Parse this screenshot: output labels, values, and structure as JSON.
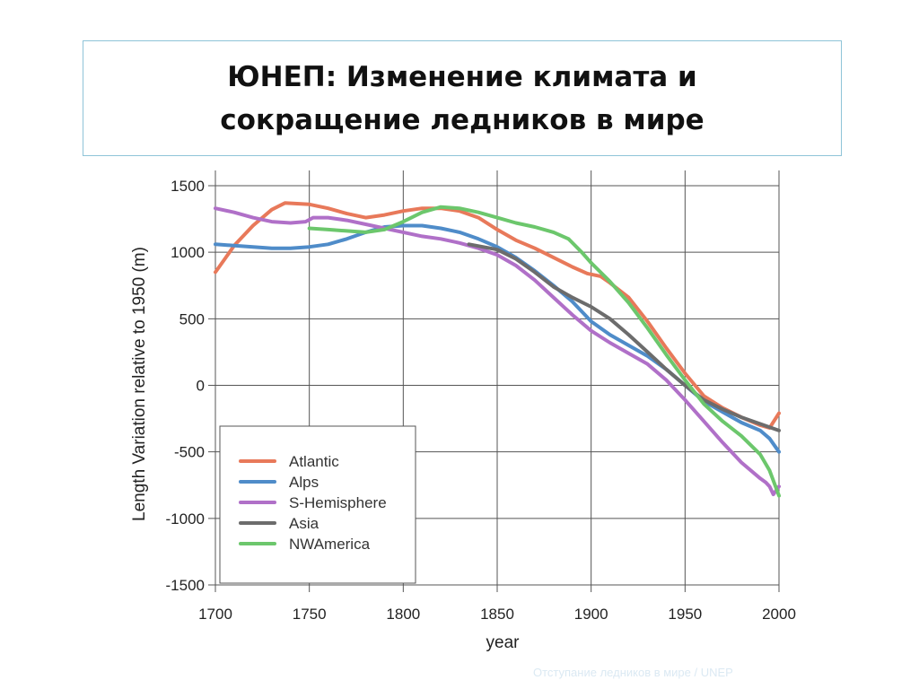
{
  "slide": {
    "title_line1": "ЮНЕП: Изменение климата и",
    "title_line2": "сокращение ледников в мире",
    "footer": "Отступание ледников в мире  / UNEP"
  },
  "chart_data": {
    "type": "line",
    "xlabel": "year",
    "ylabel": "Length Variation relative to 1950 (m)",
    "xlim": [
      1700,
      2000
    ],
    "ylim": [
      -1500,
      1500
    ],
    "xticks": [
      1700,
      1750,
      1800,
      1850,
      1900,
      1950,
      2000
    ],
    "yticks": [
      1500,
      1000,
      500,
      0,
      -500,
      -1000,
      -1500
    ],
    "grid": true,
    "legend_position": "bottom-left",
    "series": [
      {
        "name": "Atlantic",
        "color": "#e8795a",
        "x": [
          1700,
          1705,
          1710,
          1720,
          1730,
          1737,
          1750,
          1760,
          1770,
          1780,
          1790,
          1800,
          1810,
          1820,
          1830,
          1840,
          1850,
          1860,
          1870,
          1880,
          1890,
          1898,
          1905,
          1910,
          1920,
          1930,
          1940,
          1950,
          1960,
          1970,
          1980,
          1990,
          1995,
          2000
        ],
        "y": [
          850,
          950,
          1050,
          1200,
          1320,
          1370,
          1360,
          1330,
          1290,
          1260,
          1280,
          1310,
          1330,
          1330,
          1310,
          1260,
          1170,
          1090,
          1030,
          960,
          890,
          840,
          820,
          770,
          660,
          480,
          280,
          90,
          -80,
          -170,
          -240,
          -300,
          -320,
          -210
        ]
      },
      {
        "name": "Alps",
        "color": "#4f8cc9",
        "x": [
          1700,
          1710,
          1720,
          1730,
          1740,
          1750,
          1760,
          1770,
          1780,
          1790,
          1800,
          1810,
          1820,
          1830,
          1840,
          1850,
          1860,
          1870,
          1880,
          1890,
          1900,
          1910,
          1920,
          1930,
          1940,
          1950,
          1960,
          1970,
          1980,
          1990,
          1995,
          2000
        ],
        "y": [
          1060,
          1050,
          1040,
          1030,
          1030,
          1040,
          1060,
          1100,
          1150,
          1190,
          1200,
          1200,
          1180,
          1150,
          1100,
          1040,
          960,
          860,
          750,
          630,
          480,
          380,
          300,
          220,
          120,
          0,
          -120,
          -200,
          -280,
          -340,
          -400,
          -500
        ]
      },
      {
        "name": "S-Hemisphere",
        "color": "#b070c8",
        "x": [
          1700,
          1710,
          1720,
          1730,
          1740,
          1748,
          1752,
          1760,
          1770,
          1780,
          1790,
          1800,
          1810,
          1820,
          1830,
          1840,
          1850,
          1860,
          1870,
          1880,
          1890,
          1900,
          1910,
          1920,
          1930,
          1940,
          1950,
          1960,
          1970,
          1980,
          1990,
          1993,
          1995,
          1997,
          2000
        ],
        "y": [
          1330,
          1300,
          1260,
          1230,
          1220,
          1230,
          1260,
          1260,
          1240,
          1210,
          1180,
          1150,
          1120,
          1100,
          1070,
          1030,
          980,
          900,
          790,
          660,
          530,
          410,
          320,
          240,
          160,
          40,
          -110,
          -270,
          -430,
          -580,
          -700,
          -730,
          -760,
          -820,
          -760
        ]
      },
      {
        "name": "Asia",
        "color": "#6c6c6c",
        "x": [
          1835,
          1850,
          1860,
          1870,
          1880,
          1890,
          1900,
          1910,
          1920,
          1930,
          1940,
          1950,
          1960,
          1970,
          1980,
          1990,
          2000
        ],
        "y": [
          1060,
          1020,
          950,
          850,
          740,
          660,
          590,
          500,
          380,
          250,
          120,
          0,
          -110,
          -180,
          -240,
          -290,
          -340
        ]
      },
      {
        "name": "NWAmerica",
        "color": "#6cc76c",
        "x": [
          1750,
          1760,
          1770,
          1780,
          1790,
          1800,
          1810,
          1820,
          1830,
          1840,
          1850,
          1860,
          1870,
          1880,
          1888,
          1895,
          1900,
          1910,
          1920,
          1930,
          1940,
          1950,
          1960,
          1970,
          1980,
          1990,
          1995,
          2000
        ],
        "y": [
          1180,
          1170,
          1160,
          1150,
          1170,
          1230,
          1300,
          1340,
          1330,
          1300,
          1260,
          1220,
          1190,
          1150,
          1100,
          1000,
          920,
          780,
          620,
          430,
          230,
          40,
          -140,
          -270,
          -380,
          -520,
          -640,
          -830
        ]
      }
    ]
  }
}
